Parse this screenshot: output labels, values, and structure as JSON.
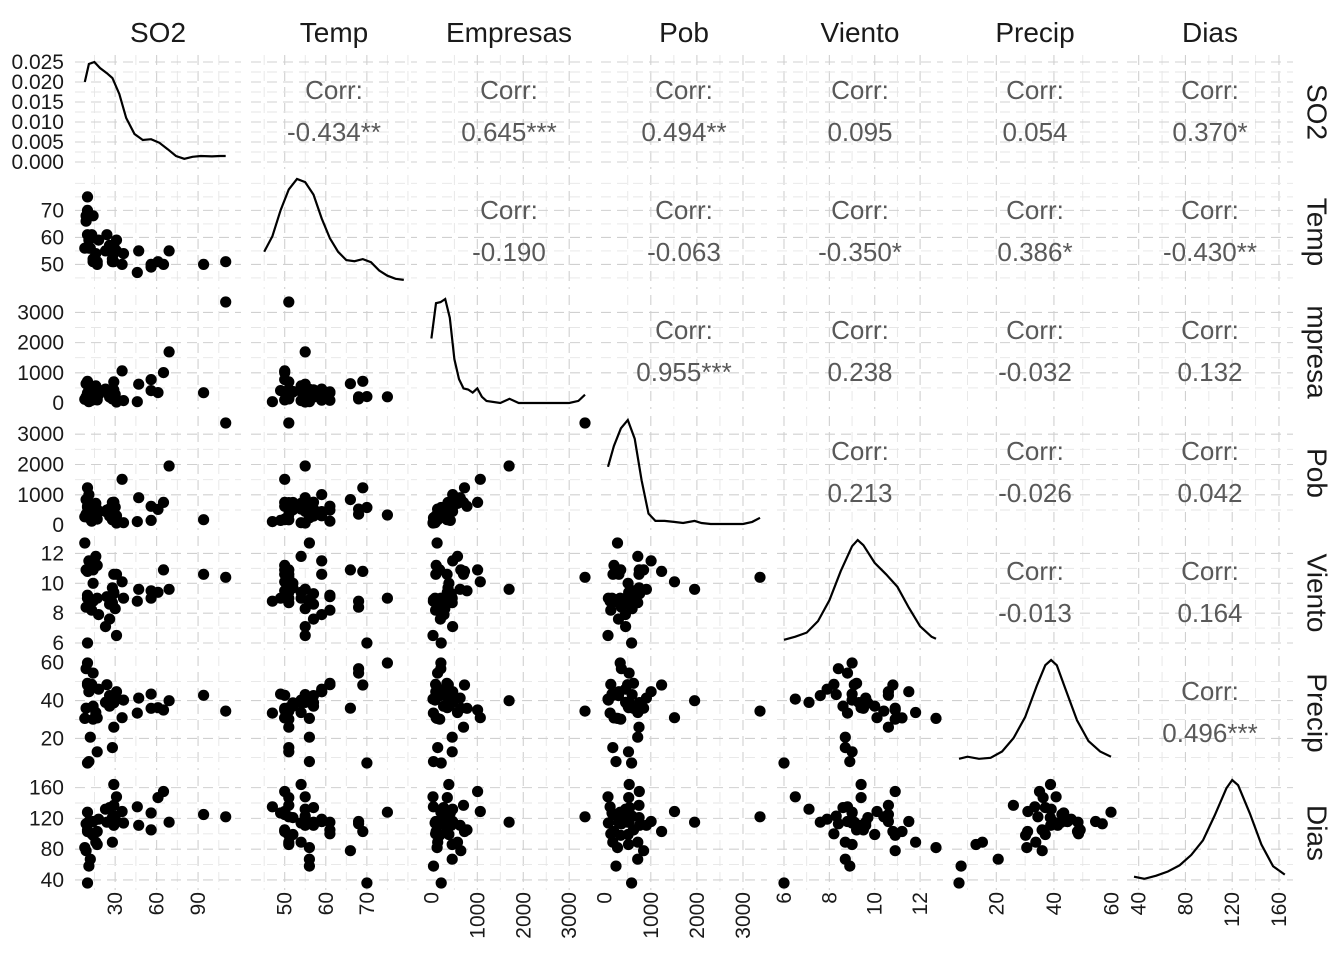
{
  "chart_data": {
    "type": "scatter",
    "variables": [
      "SO2",
      "Temp",
      "Empresas",
      "Pob",
      "Viento",
      "Precip",
      "Dias"
    ],
    "column_labels": [
      "SO2",
      "Temp",
      "Empresas",
      "Pob",
      "Viento",
      "Precip",
      "Dias"
    ],
    "row_labels": [
      "SO2",
      "Temp",
      "mpresa",
      "Pob",
      "Viento",
      "Precip",
      "Dias"
    ],
    "corr_label": "Corr:",
    "correlations": [
      {
        "row": 0,
        "col": 1,
        "text": "-0.434**"
      },
      {
        "row": 0,
        "col": 2,
        "text": "0.645***"
      },
      {
        "row": 0,
        "col": 3,
        "text": "0.494**"
      },
      {
        "row": 0,
        "col": 4,
        "text": "0.095"
      },
      {
        "row": 0,
        "col": 5,
        "text": "0.054"
      },
      {
        "row": 0,
        "col": 6,
        "text": "0.370*"
      },
      {
        "row": 1,
        "col": 2,
        "text": "-0.190"
      },
      {
        "row": 1,
        "col": 3,
        "text": "-0.063"
      },
      {
        "row": 1,
        "col": 4,
        "text": "-0.350*"
      },
      {
        "row": 1,
        "col": 5,
        "text": "0.386*"
      },
      {
        "row": 1,
        "col": 6,
        "text": "-0.430**"
      },
      {
        "row": 2,
        "col": 3,
        "text": "0.955***"
      },
      {
        "row": 2,
        "col": 4,
        "text": "0.238"
      },
      {
        "row": 2,
        "col": 5,
        "text": "-0.032"
      },
      {
        "row": 2,
        "col": 6,
        "text": "0.132"
      },
      {
        "row": 3,
        "col": 4,
        "text": "0.213"
      },
      {
        "row": 3,
        "col": 5,
        "text": "-0.026"
      },
      {
        "row": 3,
        "col": 6,
        "text": "0.042"
      },
      {
        "row": 4,
        "col": 5,
        "text": "-0.013"
      },
      {
        "row": 4,
        "col": 6,
        "text": "0.164"
      },
      {
        "row": 5,
        "col": 6,
        "text": "0.496***"
      }
    ],
    "ranges": {
      "SO2": [
        6,
        116
      ],
      "Temp": [
        43.5,
        80.5
      ],
      "Empresas": [
        35,
        3344
      ],
      "Pob": [
        71,
        3369
      ],
      "Viento": [
        6.0,
        12.7
      ],
      "Precip": [
        7.05,
        59.8
      ],
      "Dias": [
        36,
        166
      ]
    },
    "x_ticks": {
      "SO2": [
        "30",
        "60",
        "90"
      ],
      "Temp": [
        "50",
        "60",
        "70"
      ],
      "Empresas": [
        "0",
        "1000",
        "2000",
        "3000"
      ],
      "Pob": [
        "0",
        "1000",
        "2000",
        "3000"
      ],
      "Viento": [
        "6",
        "8",
        "10",
        "12"
      ],
      "Precip": [
        "20",
        "40",
        "60"
      ],
      "Dias": [
        "40",
        "80",
        "120",
        "160"
      ]
    },
    "y_ticks": {
      "SO2": [
        "0.000",
        "0.005",
        "0.010",
        "0.015",
        "0.020",
        "0.025"
      ],
      "Temp": [
        "50",
        "60",
        "70"
      ],
      "Empresas": [
        "0",
        "1000",
        "2000",
        "3000"
      ],
      "Pob": [
        "0",
        "1000",
        "2000",
        "3000"
      ],
      "Viento": [
        "6",
        "8",
        "10",
        "12"
      ],
      "Precip": [
        "20",
        "40",
        "60"
      ],
      "Dias": [
        "40",
        "80",
        "120",
        "160"
      ]
    },
    "so2_density_range": [
      0,
      0.025
    ],
    "so2_density_curve": [
      [
        8,
        0.02
      ],
      [
        11,
        0.0245
      ],
      [
        15,
        0.025
      ],
      [
        19,
        0.0235
      ],
      [
        24,
        0.0222
      ],
      [
        28,
        0.021
      ],
      [
        33,
        0.017
      ],
      [
        38,
        0.011
      ],
      [
        44,
        0.007
      ],
      [
        50,
        0.0055
      ],
      [
        56,
        0.0057
      ],
      [
        62,
        0.0048
      ],
      [
        68,
        0.0032
      ],
      [
        74,
        0.0015
      ],
      [
        80,
        0.0008
      ],
      [
        86,
        0.0013
      ],
      [
        92,
        0.0015
      ],
      [
        100,
        0.0014
      ],
      [
        106,
        0.0015
      ],
      [
        110,
        0.0015
      ]
    ],
    "density_shapes": {
      "Temp": [
        [
          45,
          0.3
        ],
        [
          47,
          0.45
        ],
        [
          49,
          0.7
        ],
        [
          51,
          0.9
        ],
        [
          53,
          1.0
        ],
        [
          55,
          0.97
        ],
        [
          57,
          0.85
        ],
        [
          59,
          0.62
        ],
        [
          61,
          0.43
        ],
        [
          63,
          0.3
        ],
        [
          65,
          0.22
        ],
        [
          67,
          0.21
        ],
        [
          69,
          0.23
        ],
        [
          71,
          0.2
        ],
        [
          73,
          0.12
        ],
        [
          75,
          0.07
        ],
        [
          77,
          0.04
        ],
        [
          79,
          0.03
        ]
      ],
      "Empresas": [
        [
          0,
          0.62
        ],
        [
          100,
          0.96
        ],
        [
          200,
          0.97
        ],
        [
          300,
          1.0
        ],
        [
          400,
          0.82
        ],
        [
          500,
          0.42
        ],
        [
          600,
          0.23
        ],
        [
          700,
          0.14
        ],
        [
          800,
          0.13
        ],
        [
          900,
          0.1
        ],
        [
          1000,
          0.14
        ],
        [
          1100,
          0.06
        ],
        [
          1200,
          0.02
        ],
        [
          1500,
          0.0
        ],
        [
          1700,
          0.04
        ],
        [
          1900,
          0.0
        ],
        [
          2200,
          0.0
        ],
        [
          2600,
          0.0
        ],
        [
          3000,
          0.0
        ],
        [
          3200,
          0.02
        ],
        [
          3344,
          0.08
        ]
      ],
      "Pob": [
        [
          71,
          0.55
        ],
        [
          200,
          0.75
        ],
        [
          350,
          0.92
        ],
        [
          500,
          1.0
        ],
        [
          650,
          0.82
        ],
        [
          800,
          0.42
        ],
        [
          950,
          0.1
        ],
        [
          1100,
          0.03
        ],
        [
          1300,
          0.03
        ],
        [
          1500,
          0.02
        ],
        [
          1700,
          0.01
        ],
        [
          1950,
          0.03
        ],
        [
          2100,
          0.01
        ],
        [
          2300,
          0.0
        ],
        [
          2600,
          0.0
        ],
        [
          3000,
          0.0
        ],
        [
          3200,
          0.02
        ],
        [
          3369,
          0.06
        ]
      ],
      "Viento": [
        [
          6.0,
          0.04
        ],
        [
          6.5,
          0.07
        ],
        [
          7.0,
          0.11
        ],
        [
          7.5,
          0.22
        ],
        [
          8.0,
          0.42
        ],
        [
          8.5,
          0.7
        ],
        [
          9.0,
          0.94
        ],
        [
          9.25,
          1.0
        ],
        [
          9.5,
          0.95
        ],
        [
          10.0,
          0.78
        ],
        [
          10.5,
          0.67
        ],
        [
          11.0,
          0.55
        ],
        [
          11.5,
          0.35
        ],
        [
          12.0,
          0.17
        ],
        [
          12.5,
          0.07
        ],
        [
          12.7,
          0.05
        ]
      ],
      "Precip": [
        [
          7.05,
          0.05
        ],
        [
          10,
          0.07
        ],
        [
          14,
          0.05
        ],
        [
          18,
          0.06
        ],
        [
          22,
          0.12
        ],
        [
          26,
          0.25
        ],
        [
          30,
          0.45
        ],
        [
          34,
          0.75
        ],
        [
          37,
          0.95
        ],
        [
          39,
          1.0
        ],
        [
          41,
          0.95
        ],
        [
          44,
          0.72
        ],
        [
          48,
          0.42
        ],
        [
          52,
          0.22
        ],
        [
          56,
          0.12
        ],
        [
          59.8,
          0.07
        ]
      ],
      "Dias": [
        [
          36,
          0.07
        ],
        [
          45,
          0.05
        ],
        [
          55,
          0.08
        ],
        [
          65,
          0.12
        ],
        [
          75,
          0.18
        ],
        [
          85,
          0.28
        ],
        [
          95,
          0.42
        ],
        [
          105,
          0.66
        ],
        [
          115,
          0.92
        ],
        [
          120,
          1.0
        ],
        [
          125,
          0.95
        ],
        [
          135,
          0.68
        ],
        [
          145,
          0.38
        ],
        [
          155,
          0.17
        ],
        [
          165,
          0.09
        ]
      ]
    },
    "observations": [
      [
        10,
        70,
        213,
        582,
        6.0,
        7.05,
        36
      ],
      [
        13,
        61,
        91,
        132,
        8.2,
        48.52,
        100
      ],
      [
        12,
        56,
        453,
        716,
        8.7,
        20.66,
        67
      ],
      [
        17,
        51,
        454,
        515,
        9.0,
        12.95,
        86
      ],
      [
        56,
        49,
        412,
        158,
        9.0,
        43.37,
        127
      ],
      [
        36,
        54,
        80,
        80,
        9.0,
        40.25,
        114
      ],
      [
        29,
        57,
        434,
        757,
        9.3,
        38.89,
        111
      ],
      [
        14,
        68,
        136,
        529,
        8.8,
        54.47,
        116
      ],
      [
        10,
        75,
        207,
        335,
        9.0,
        59.8,
        128
      ],
      [
        24,
        61,
        368,
        497,
        9.1,
        48.34,
        115
      ],
      [
        110,
        51,
        3344,
        3369,
        10.4,
        34.44,
        122
      ],
      [
        28,
        52,
        361,
        746,
        9.7,
        38.74,
        121
      ],
      [
        17,
        50,
        104,
        201,
        11.2,
        30.85,
        103
      ],
      [
        8,
        56,
        125,
        277,
        12.7,
        30.58,
        82
      ],
      [
        30,
        55,
        291,
        593,
        8.3,
        43.11,
        123
      ],
      [
        9,
        68,
        204,
        361,
        8.4,
        56.77,
        113
      ],
      [
        47,
        55,
        625,
        905,
        9.6,
        41.31,
        111
      ],
      [
        35,
        50,
        1064,
        1513,
        10.1,
        30.96,
        129
      ],
      [
        29,
        51,
        699,
        744,
        10.6,
        25.94,
        137
      ],
      [
        14,
        52,
        381,
        507,
        10.0,
        37.0,
        99
      ],
      [
        56,
        50,
        775,
        622,
        9.5,
        35.89,
        105
      ],
      [
        14,
        51,
        181,
        347,
        10.9,
        30.18,
        98
      ],
      [
        11,
        56,
        46,
        244,
        8.9,
        7.77,
        58
      ],
      [
        46,
        47,
        44,
        116,
        8.8,
        33.36,
        135
      ],
      [
        11,
        59,
        463,
        1007,
        11.5,
        44.68,
        116
      ],
      [
        23,
        55,
        462,
        453,
        7.1,
        39.04,
        132
      ],
      [
        65,
        50,
        1007,
        751,
        10.9,
        34.99,
        155
      ],
      [
        26,
        57,
        266,
        540,
        8.6,
        37.01,
        134
      ],
      [
        69,
        55,
        1692,
        1950,
        9.6,
        39.93,
        115
      ],
      [
        61,
        51,
        347,
        520,
        9.4,
        36.22,
        147
      ],
      [
        94,
        50,
        343,
        179,
        10.6,
        42.75,
        125
      ],
      [
        10,
        61,
        337,
        624,
        9.2,
        49.1,
        105
      ],
      [
        18,
        59,
        275,
        448,
        7.9,
        46.0,
        119
      ],
      [
        9,
        66,
        641,
        844,
        10.9,
        35.94,
        78
      ],
      [
        10,
        69,
        721,
        1233,
        10.8,
        48.19,
        103
      ],
      [
        28,
        51,
        137,
        176,
        8.7,
        15.17,
        89
      ],
      [
        31,
        59,
        96,
        308,
        10.6,
        44.68,
        116
      ],
      [
        26,
        57,
        197,
        299,
        7.6,
        42.59,
        115
      ],
      [
        29,
        54,
        379,
        531,
        9.4,
        38.79,
        164
      ],
      [
        31,
        55,
        35,
        71,
        6.5,
        40.75,
        148
      ],
      [
        16,
        54,
        569,
        717,
        11.8,
        33.69,
        89
      ]
    ]
  }
}
